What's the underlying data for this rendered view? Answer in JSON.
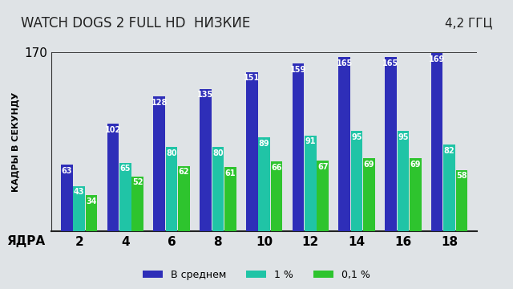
{
  "chart_data": {
    "type": "bar",
    "title": "WATCH DOGS 2 FULL HD  НИЗКИЕ",
    "annotation": "4,2 ГГЦ",
    "x_label": "ЯДРА",
    "y_label": "КАДРЫ В СЕКУНДУ",
    "categories": [
      "2",
      "4",
      "6",
      "8",
      "10",
      "12",
      "14",
      "16",
      "18"
    ],
    "series": [
      {
        "name": "В среднем",
        "color": "#2e2eb8",
        "values": [
          63,
          102,
          128,
          135,
          151,
          159,
          165,
          165,
          169
        ]
      },
      {
        "name": "1 %",
        "color": "#20c4a6",
        "values": [
          43,
          65,
          80,
          80,
          89,
          91,
          95,
          95,
          82
        ]
      },
      {
        "name": "0,1 %",
        "color": "#2ec42e",
        "values": [
          34,
          52,
          62,
          61,
          66,
          67,
          69,
          69,
          58
        ]
      }
    ],
    "ylim": [
      0,
      170
    ],
    "yticks": [
      170
    ],
    "grid": true,
    "data_labels": true,
    "legend": "lower center"
  }
}
